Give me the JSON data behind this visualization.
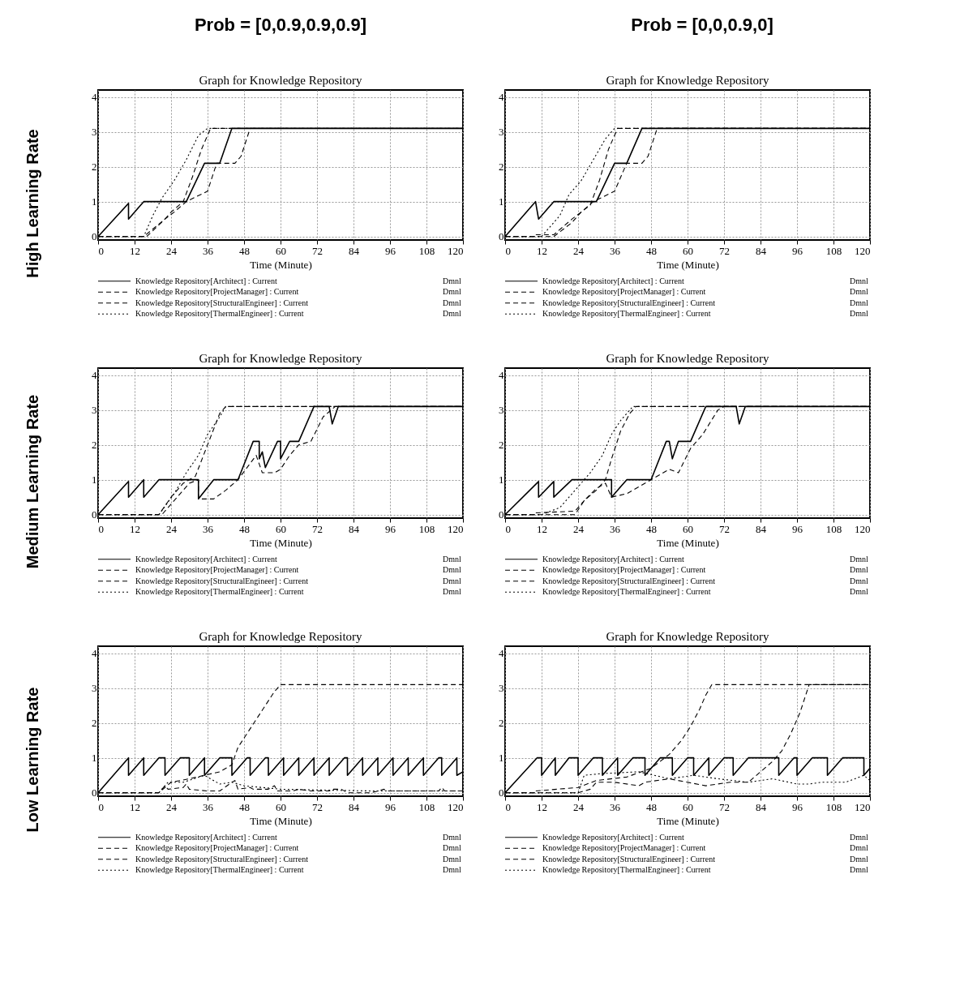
{
  "chart_data": [
    {
      "type": "line",
      "title": "Graph for Knowledge Repository",
      "xlabel": "Time (Minute)",
      "xlim": [
        0,
        120
      ],
      "xticks": [
        0,
        12,
        24,
        36,
        48,
        60,
        72,
        84,
        96,
        108,
        120
      ],
      "ylim": [
        -0.1,
        4.2
      ],
      "yticks": [
        0,
        1,
        2,
        3,
        4
      ],
      "grid": true,
      "legend": "bottom",
      "annotations": [
        "Prob = [0,0.9,0.9,0.9]",
        "High Learning Rate",
        "Dmnl",
        "Dmnl",
        "Dmnl",
        "Dmnl"
      ],
      "series": [
        {
          "name": "Knowledge Repository[Architect] : Current",
          "color": "#000000",
          "line_style": "solid",
          "x": [
            0,
            10,
            10,
            15,
            29,
            35,
            40,
            44,
            120
          ],
          "values": [
            0,
            0.95,
            0.5,
            1,
            1,
            2.1,
            2.1,
            3.1,
            3.1
          ]
        },
        {
          "name": "Knowledge Repository[ProjectManager] : Current",
          "color": "#000000",
          "line_style": "dashed",
          "x": [
            0,
            15,
            22,
            24,
            28,
            31,
            34,
            37,
            120
          ],
          "values": [
            0,
            0,
            0.5,
            0.7,
            1,
            1.7,
            2.5,
            3.1,
            3.1
          ]
        },
        {
          "name": "Knowledge Repository[StructuralEngineer] : Current",
          "color": "#000000",
          "line_style": "dashed",
          "x": [
            0,
            16,
            22,
            25,
            29,
            36,
            39,
            45,
            47,
            50,
            120
          ],
          "values": [
            0,
            0,
            0.5,
            0.7,
            1,
            1.3,
            2.1,
            2.1,
            2.3,
            3.1,
            3.1
          ]
        },
        {
          "name": "Knowledge Repository[ThermalEngineer] : Current",
          "color": "#000000",
          "line_style": "dotted",
          "x": [
            0,
            15,
            18,
            21,
            25,
            29,
            33,
            36,
            120
          ],
          "values": [
            0,
            0,
            0.6,
            1.1,
            1.6,
            2.2,
            2.9,
            3.1,
            3.1
          ]
        }
      ]
    },
    {
      "type": "line",
      "title": "Graph for Knowledge Repository",
      "xlabel": "Time (Minute)",
      "xlim": [
        0,
        120
      ],
      "xticks": [
        0,
        12,
        24,
        36,
        48,
        60,
        72,
        84,
        96,
        108,
        120
      ],
      "ylim": [
        -0.1,
        4.2
      ],
      "yticks": [
        0,
        1,
        2,
        3,
        4
      ],
      "grid": true,
      "legend": "bottom",
      "annotations": [
        "Prob = [0,0,0.9,0]",
        "Dmnl",
        "Dmnl",
        "Dmnl",
        "Dmnl"
      ],
      "series": [
        {
          "name": "Knowledge Repository[Architect] : Current",
          "color": "#000000",
          "line_style": "solid",
          "x": [
            0,
            10,
            11,
            16,
            30,
            36,
            40,
            45,
            120
          ],
          "values": [
            0,
            1,
            0.5,
            1,
            1,
            2.1,
            2.1,
            3.1,
            3.1
          ]
        },
        {
          "name": "Knowledge Repository[ProjectManager] : Current",
          "color": "#000000",
          "line_style": "dashed",
          "x": [
            0,
            10,
            10,
            16,
            22,
            25,
            28,
            31,
            34,
            37,
            120
          ],
          "values": [
            0,
            0,
            0.05,
            0.05,
            0.5,
            0.7,
            0.9,
            1.6,
            2.5,
            3.1,
            3.1
          ]
        },
        {
          "name": "Knowledge Repository[StructuralEngineer] : Current",
          "color": "#000000",
          "line_style": "dashed",
          "x": [
            0,
            16,
            22,
            25,
            29,
            36,
            40,
            45,
            47,
            50,
            120
          ],
          "values": [
            0,
            0,
            0.4,
            0.7,
            1,
            1.3,
            2.1,
            2.1,
            2.3,
            3.1,
            3.1
          ]
        },
        {
          "name": "Knowledge Repository[ThermalEngineer] : Current",
          "color": "#000000",
          "line_style": "dotted",
          "x": [
            0,
            12,
            18,
            21,
            25,
            29,
            33,
            36,
            120
          ],
          "values": [
            0,
            0,
            0.6,
            1.2,
            1.6,
            2.2,
            2.8,
            3.1,
            3.1
          ]
        }
      ]
    },
    {
      "type": "line",
      "title": "Graph for Knowledge Repository",
      "xlabel": "Time (Minute)",
      "xlim": [
        0,
        120
      ],
      "xticks": [
        0,
        12,
        24,
        36,
        48,
        60,
        72,
        84,
        96,
        108,
        120
      ],
      "ylim": [
        -0.1,
        4.2
      ],
      "yticks": [
        0,
        1,
        2,
        3,
        4
      ],
      "grid": true,
      "legend": "bottom",
      "annotations": [
        "Medium Learning Rate",
        "Dmnl",
        "Dmnl",
        "Dmnl",
        "Dmnl"
      ],
      "series": [
        {
          "name": "Knowledge Repository[Architect] : Current",
          "color": "#000000",
          "line_style": "solid",
          "x": [
            0,
            10,
            10,
            15,
            15,
            20,
            33,
            33,
            38,
            46,
            51,
            53,
            53,
            54,
            55,
            59,
            60,
            60,
            63,
            66,
            71,
            76,
            77,
            79,
            120
          ],
          "values": [
            0,
            0.95,
            0.5,
            1,
            0.5,
            1,
            1,
            0.45,
            1,
            1,
            2.1,
            2.1,
            1.6,
            1.8,
            1.35,
            2.1,
            2.1,
            1.6,
            2.1,
            2.1,
            3.1,
            3.1,
            2.6,
            3.1,
            3.1
          ]
        },
        {
          "name": "Knowledge Repository[ProjectManager] : Current",
          "color": "#000000",
          "line_style": "dashed",
          "x": [
            0,
            20,
            24,
            28,
            32,
            36,
            40,
            42,
            120
          ],
          "values": [
            0,
            0,
            0.5,
            0.9,
            1.1,
            2.0,
            2.9,
            3.1,
            3.1
          ]
        },
        {
          "name": "Knowledge Repository[StructuralEngineer] : Current",
          "color": "#000000",
          "line_style": "dashed",
          "x": [
            0,
            21,
            24,
            26,
            30,
            33,
            33,
            38,
            42,
            46,
            52,
            54,
            58,
            60,
            63,
            66,
            70,
            74,
            78,
            120
          ],
          "values": [
            0,
            0,
            0.3,
            0.5,
            0.9,
            1,
            0.45,
            0.45,
            0.7,
            1,
            1.7,
            1.2,
            1.2,
            1.3,
            1.7,
            2.0,
            2.1,
            2.8,
            3.1,
            3.1
          ]
        },
        {
          "name": "Knowledge Repository[ThermalEngineer] : Current",
          "color": "#000000",
          "line_style": "dotted",
          "x": [
            0,
            20,
            25,
            29,
            33,
            36,
            40,
            42,
            120
          ],
          "values": [
            0,
            0,
            0.6,
            1.2,
            1.7,
            2.3,
            2.8,
            3.1,
            3.1
          ]
        }
      ]
    },
    {
      "type": "line",
      "title": "Graph for Knowledge Repository",
      "xlabel": "Time (Minute)",
      "xlim": [
        0,
        120
      ],
      "xticks": [
        0,
        12,
        24,
        36,
        48,
        60,
        72,
        84,
        96,
        108,
        120
      ],
      "ylim": [
        -0.1,
        4.2
      ],
      "yticks": [
        0,
        1,
        2,
        3,
        4
      ],
      "grid": true,
      "legend": "bottom",
      "annotations": [
        "Dmnl",
        "Dmnl",
        "Dmnl",
        "Dmnl"
      ],
      "series": [
        {
          "name": "Knowledge Repository[Architect] : Current",
          "color": "#000000",
          "line_style": "solid",
          "x": [
            0,
            11,
            11,
            16,
            16,
            22,
            35,
            35,
            40,
            48,
            53,
            54,
            55,
            57,
            61,
            66,
            76,
            77,
            79,
            120
          ],
          "values": [
            0,
            0.95,
            0.5,
            0.95,
            0.5,
            1,
            1,
            0.5,
            1,
            1,
            2.1,
            2.1,
            1.6,
            2.1,
            2.1,
            3.1,
            3.1,
            2.6,
            3.1,
            3.1
          ]
        },
        {
          "name": "Knowledge Repository[ProjectManager] : Current",
          "color": "#000000",
          "line_style": "dashed",
          "x": [
            0,
            10,
            10,
            23,
            26,
            30,
            33,
            35,
            38,
            41,
            43,
            120
          ],
          "values": [
            0,
            0,
            0.05,
            0.1,
            0.4,
            0.7,
            1,
            1.6,
            2.4,
            2.9,
            3.1,
            3.1
          ]
        },
        {
          "name": "Knowledge Repository[StructuralEngineer] : Current",
          "color": "#000000",
          "line_style": "dashed",
          "x": [
            0,
            23,
            26,
            30,
            33,
            35,
            40,
            44,
            48,
            54,
            57,
            61,
            65,
            70,
            72,
            120
          ],
          "values": [
            0,
            0,
            0.4,
            0.75,
            0.9,
            0.5,
            0.6,
            0.8,
            1,
            1.3,
            1.2,
            1.9,
            2.3,
            3.0,
            3.1,
            3.1
          ]
        },
        {
          "name": "Knowledge Repository[ThermalEngineer] : Current",
          "color": "#000000",
          "line_style": "dotted",
          "x": [
            0,
            12,
            18,
            24,
            28,
            32,
            35,
            38,
            42,
            120
          ],
          "values": [
            0,
            0,
            0.2,
            0.8,
            1.2,
            1.7,
            2.3,
            2.7,
            3.1,
            3.1
          ]
        }
      ]
    },
    {
      "type": "line",
      "title": "Graph for Knowledge Repository",
      "xlabel": "Time (Minute)",
      "xlim": [
        0,
        120
      ],
      "xticks": [
        0,
        12,
        24,
        36,
        48,
        60,
        72,
        84,
        96,
        108,
        120
      ],
      "ylim": [
        -0.1,
        4.2
      ],
      "yticks": [
        0,
        1,
        2,
        3,
        4
      ],
      "grid": true,
      "legend": "bottom",
      "annotations": [
        "Low Learning Rate",
        "Dmnl",
        "Dmnl",
        "Dmnl",
        "Dmnl"
      ],
      "series": [
        {
          "name": "Knowledge Repository[Architect] : Current",
          "color": "#000000",
          "line_style": "solid",
          "x": [
            0,
            10,
            10,
            15,
            15,
            20,
            22,
            22,
            27,
            30,
            30,
            35,
            35,
            40,
            44,
            44,
            49,
            50,
            50,
            55,
            56,
            56,
            61,
            61,
            66,
            66,
            71,
            71,
            76,
            76,
            81,
            82,
            82,
            87,
            87,
            92,
            92,
            97,
            97,
            102,
            102,
            107,
            107,
            112,
            113,
            113,
            118,
            118,
            120
          ],
          "values": [
            0,
            1,
            0.5,
            1,
            0.5,
            1,
            1,
            0.5,
            1,
            1,
            0.5,
            1,
            0.5,
            1,
            1,
            0.5,
            1,
            1,
            0.5,
            1,
            1,
            0.5,
            1,
            0.5,
            1,
            0.5,
            1,
            0.5,
            1,
            0.5,
            1,
            1,
            0.5,
            1,
            0.5,
            1,
            0.5,
            1,
            0.5,
            1,
            0.5,
            1,
            0.5,
            1,
            1,
            0.5,
            1,
            0.5,
            0.6
          ]
        },
        {
          "name": "Knowledge Repository[ProjectManager] : Current",
          "color": "#000000",
          "line_style": "dashed",
          "x": [
            0,
            20,
            24,
            30,
            40,
            44,
            46,
            49,
            52,
            55,
            58,
            60,
            120
          ],
          "values": [
            0,
            0,
            0.3,
            0.4,
            0.6,
            0.8,
            1.3,
            1.7,
            2.1,
            2.5,
            2.9,
            3.1,
            3.1
          ]
        },
        {
          "name": "Knowledge Repository[StructuralEngineer] : Current",
          "color": "#000000",
          "line_style": "dashed",
          "x": [
            0,
            20,
            22,
            23,
            28,
            29,
            30,
            36,
            40,
            44,
            45,
            46,
            50,
            51,
            56,
            58,
            59,
            64,
            66,
            70,
            76,
            77,
            80,
            82,
            90,
            94,
            95,
            100,
            106,
            112,
            113,
            114,
            120
          ],
          "values": [
            0,
            0,
            0.2,
            0.1,
            0.15,
            0.25,
            0.1,
            0.05,
            0.05,
            0.3,
            0.35,
            0.1,
            0.15,
            0.1,
            0.1,
            0.2,
            0.05,
            0.05,
            0.1,
            0.05,
            0.05,
            0.1,
            0.1,
            0,
            0,
            0.1,
            0.05,
            0.05,
            0.05,
            0.05,
            0.15,
            0.05,
            0.05
          ]
        },
        {
          "name": "Knowledge Repository[ThermalEngineer] : Current",
          "color": "#000000",
          "line_style": "dotted",
          "x": [
            0,
            20,
            23,
            28,
            35,
            40,
            44,
            48,
            60,
            90,
            120
          ],
          "values": [
            0,
            0,
            0.3,
            0.3,
            0.5,
            0.25,
            0.3,
            0.2,
            0.1,
            0.05,
            0.05
          ]
        }
      ]
    },
    {
      "type": "line",
      "title": "Graph for Knowledge Repository",
      "xlabel": "Time (Minute)",
      "xlim": [
        0,
        120
      ],
      "xticks": [
        0,
        12,
        24,
        36,
        48,
        60,
        72,
        84,
        96,
        108,
        120
      ],
      "ylim": [
        -0.1,
        4.2
      ],
      "yticks": [
        0,
        1,
        2,
        3,
        4
      ],
      "grid": true,
      "legend": "bottom",
      "annotations": [
        "Dmnl",
        "Dmnl",
        "Dmnl",
        "Dmnl"
      ],
      "series": [
        {
          "name": "Knowledge Repository[Architect] : Current",
          "color": "#000000",
          "line_style": "solid",
          "x": [
            0,
            10.5,
            12,
            12,
            16.5,
            16.5,
            21,
            24,
            24,
            29,
            32,
            32,
            37,
            37,
            42,
            46,
            46,
            51,
            55,
            55,
            60,
            62,
            62,
            67,
            67,
            72,
            75,
            75,
            80,
            90,
            90,
            95,
            96,
            96,
            101,
            106,
            106,
            111,
            118,
            118,
            120
          ],
          "values": [
            0,
            1,
            1,
            0.5,
            1,
            0.5,
            1,
            1,
            0.5,
            1,
            1,
            0.5,
            1,
            0.5,
            1,
            1,
            0.5,
            1,
            1,
            0.5,
            1,
            1,
            0.5,
            1,
            0.5,
            1,
            1,
            0.5,
            1,
            1,
            0.5,
            1,
            1,
            0.5,
            1,
            1,
            0.5,
            1,
            1,
            0.5,
            0.7
          ]
        },
        {
          "name": "Knowledge Repository[ProjectManager] : Current",
          "color": "#000000",
          "line_style": "dashed",
          "x": [
            0,
            10,
            10,
            17,
            24,
            30,
            40,
            48,
            54,
            58,
            61,
            64,
            66,
            68,
            120
          ],
          "values": [
            0,
            0,
            0.05,
            0.1,
            0.15,
            0.35,
            0.45,
            0.7,
            1.1,
            1.5,
            1.9,
            2.4,
            2.8,
            3.1,
            3.1
          ]
        },
        {
          "name": "Knowledge Repository[StructuralEngineer] : Current",
          "color": "#000000",
          "line_style": "dashed",
          "x": [
            0,
            24,
            28,
            30,
            36,
            44,
            46,
            54,
            60,
            66,
            74,
            80,
            84,
            88,
            91,
            94,
            97,
            100,
            120
          ],
          "values": [
            0,
            0,
            0.1,
            0.3,
            0.3,
            0.2,
            0.3,
            0.4,
            0.3,
            0.2,
            0.3,
            0.3,
            0.6,
            0.9,
            1.2,
            1.7,
            2.3,
            3.1,
            3.1
          ]
        },
        {
          "name": "Knowledge Repository[ThermalEngineer] : Current",
          "color": "#000000",
          "line_style": "dotted",
          "x": [
            0,
            24,
            26,
            32,
            44,
            54,
            62,
            70,
            80,
            88,
            96,
            100,
            104,
            112,
            118,
            120
          ],
          "values": [
            0,
            0,
            0.5,
            0.55,
            0.6,
            0.4,
            0.5,
            0.4,
            0.3,
            0.4,
            0.25,
            0.25,
            0.3,
            0.3,
            0.5,
            0.35
          ]
        }
      ]
    }
  ]
}
